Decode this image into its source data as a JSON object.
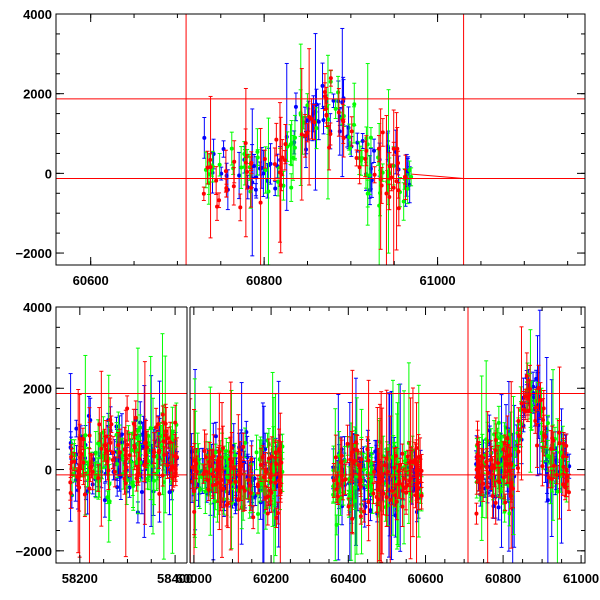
{
  "chart_data": [
    {
      "type": "scatter",
      "panel": "top",
      "x_range": [
        60560,
        61170
      ],
      "ylim": [
        -2300,
        4000
      ],
      "x_ticks": [
        "60600",
        "60800",
        "61000"
      ],
      "y_ticks": [
        "4000",
        "2000",
        "0",
        "-2000"
      ],
      "grid": false,
      "reference_lines": {
        "horizontal": [
          1870,
          -130
        ],
        "vertical": [
          60710,
          61030
        ],
        "color": "#ff0000"
      },
      "series": [
        {
          "color": "#0000ff",
          "x_range": [
            60730,
            60970
          ],
          "y_center": "approx. 0 to 2000, peaking near x=60870"
        },
        {
          "color": "#00ff00",
          "x_range": [
            60730,
            60970
          ],
          "y_center": "approx. 0 to 2000, peaking near x=60870"
        },
        {
          "color": "#ff0000",
          "x_range": [
            60730,
            60970
          ],
          "y_center": "approx. 0 to 2000, peaking near x=60870"
        }
      ],
      "segments": [
        {
          "x_start": 60730,
          "x_end": 60970,
          "peak_x": 60870,
          "peak_y": 1900,
          "width": 35
        }
      ]
    },
    {
      "type": "scatter",
      "panel": "bottom",
      "x_ticks": [
        "58200",
        "58400",
        "60000",
        "60200",
        "60400",
        "60600",
        "60800",
        "61000"
      ],
      "y_ticks": [
        "4000",
        "2000",
        "0",
        "-2000"
      ],
      "ylim": [
        -2300,
        4000
      ],
      "grid": false,
      "reference_lines": {
        "horizontal": [
          1870,
          -130
        ],
        "vertical": [
          60710
        ],
        "color": "#ff0000"
      },
      "series": [
        {
          "color": "#0000ff"
        },
        {
          "color": "#00ff00"
        },
        {
          "color": "#ff0000"
        }
      ],
      "segments": [
        {
          "x_start": 58180,
          "x_end": 58405,
          "peak_x": 58340,
          "peak_y": 350,
          "width": 160
        },
        {
          "x_start": 59990,
          "x_end": 60230,
          "peak_x": 60110,
          "peak_y": -150,
          "width": 300
        },
        {
          "x_start": 60360,
          "x_end": 60590,
          "peak_x": 60480,
          "peak_y": -200,
          "width": 300
        },
        {
          "x_start": 60730,
          "x_end": 60970,
          "peak_x": 60870,
          "peak_y": 1900,
          "width": 35
        }
      ]
    }
  ]
}
